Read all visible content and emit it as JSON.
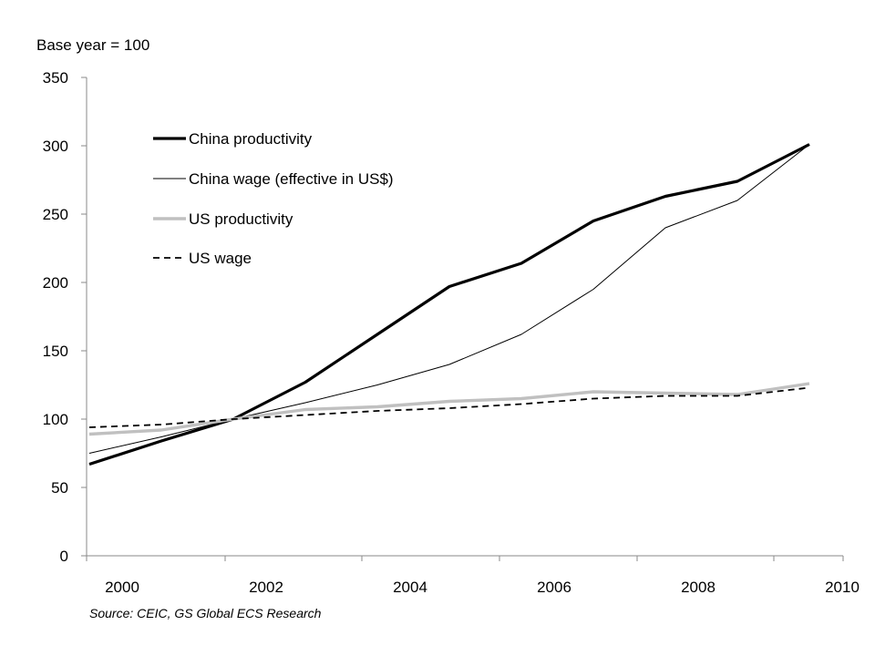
{
  "chart_data": {
    "type": "line",
    "ylabel": "Base year = 100",
    "ylim": [
      0,
      350
    ],
    "yticks": [
      0,
      50,
      100,
      150,
      200,
      250,
      300,
      350
    ],
    "x": [
      2000,
      2001,
      2002,
      2003,
      2004,
      2005,
      2006,
      2007,
      2008,
      2009,
      2010
    ],
    "xticks": [
      "2000",
      "2002",
      "2004",
      "2006",
      "2008",
      "2010"
    ],
    "grid": false,
    "legend": "top-left",
    "series": [
      {
        "name": "China productivity",
        "style": "thick-black",
        "color": "#000000",
        "values": [
          67,
          84,
          100,
          127,
          162,
          197,
          214,
          245,
          263,
          274,
          301
        ]
      },
      {
        "name": "China wage (effective  in US$)",
        "style": "thin-black",
        "color": "#000000",
        "values": [
          75,
          87,
          100,
          112,
          125,
          140,
          162,
          195,
          240,
          260,
          301
        ]
      },
      {
        "name": "US productivity",
        "style": "thick-gray",
        "color": "#c0c0c0",
        "values": [
          89,
          92,
          100,
          107,
          109,
          113,
          115,
          120,
          119,
          118,
          126
        ]
      },
      {
        "name": "US wage",
        "style": "dashed-black",
        "color": "#000000",
        "values": [
          94,
          96,
          100,
          103,
          106,
          108,
          111,
          115,
          117,
          117,
          123
        ]
      }
    ]
  },
  "source": "Source: CEIC, GS Global ECS Research"
}
